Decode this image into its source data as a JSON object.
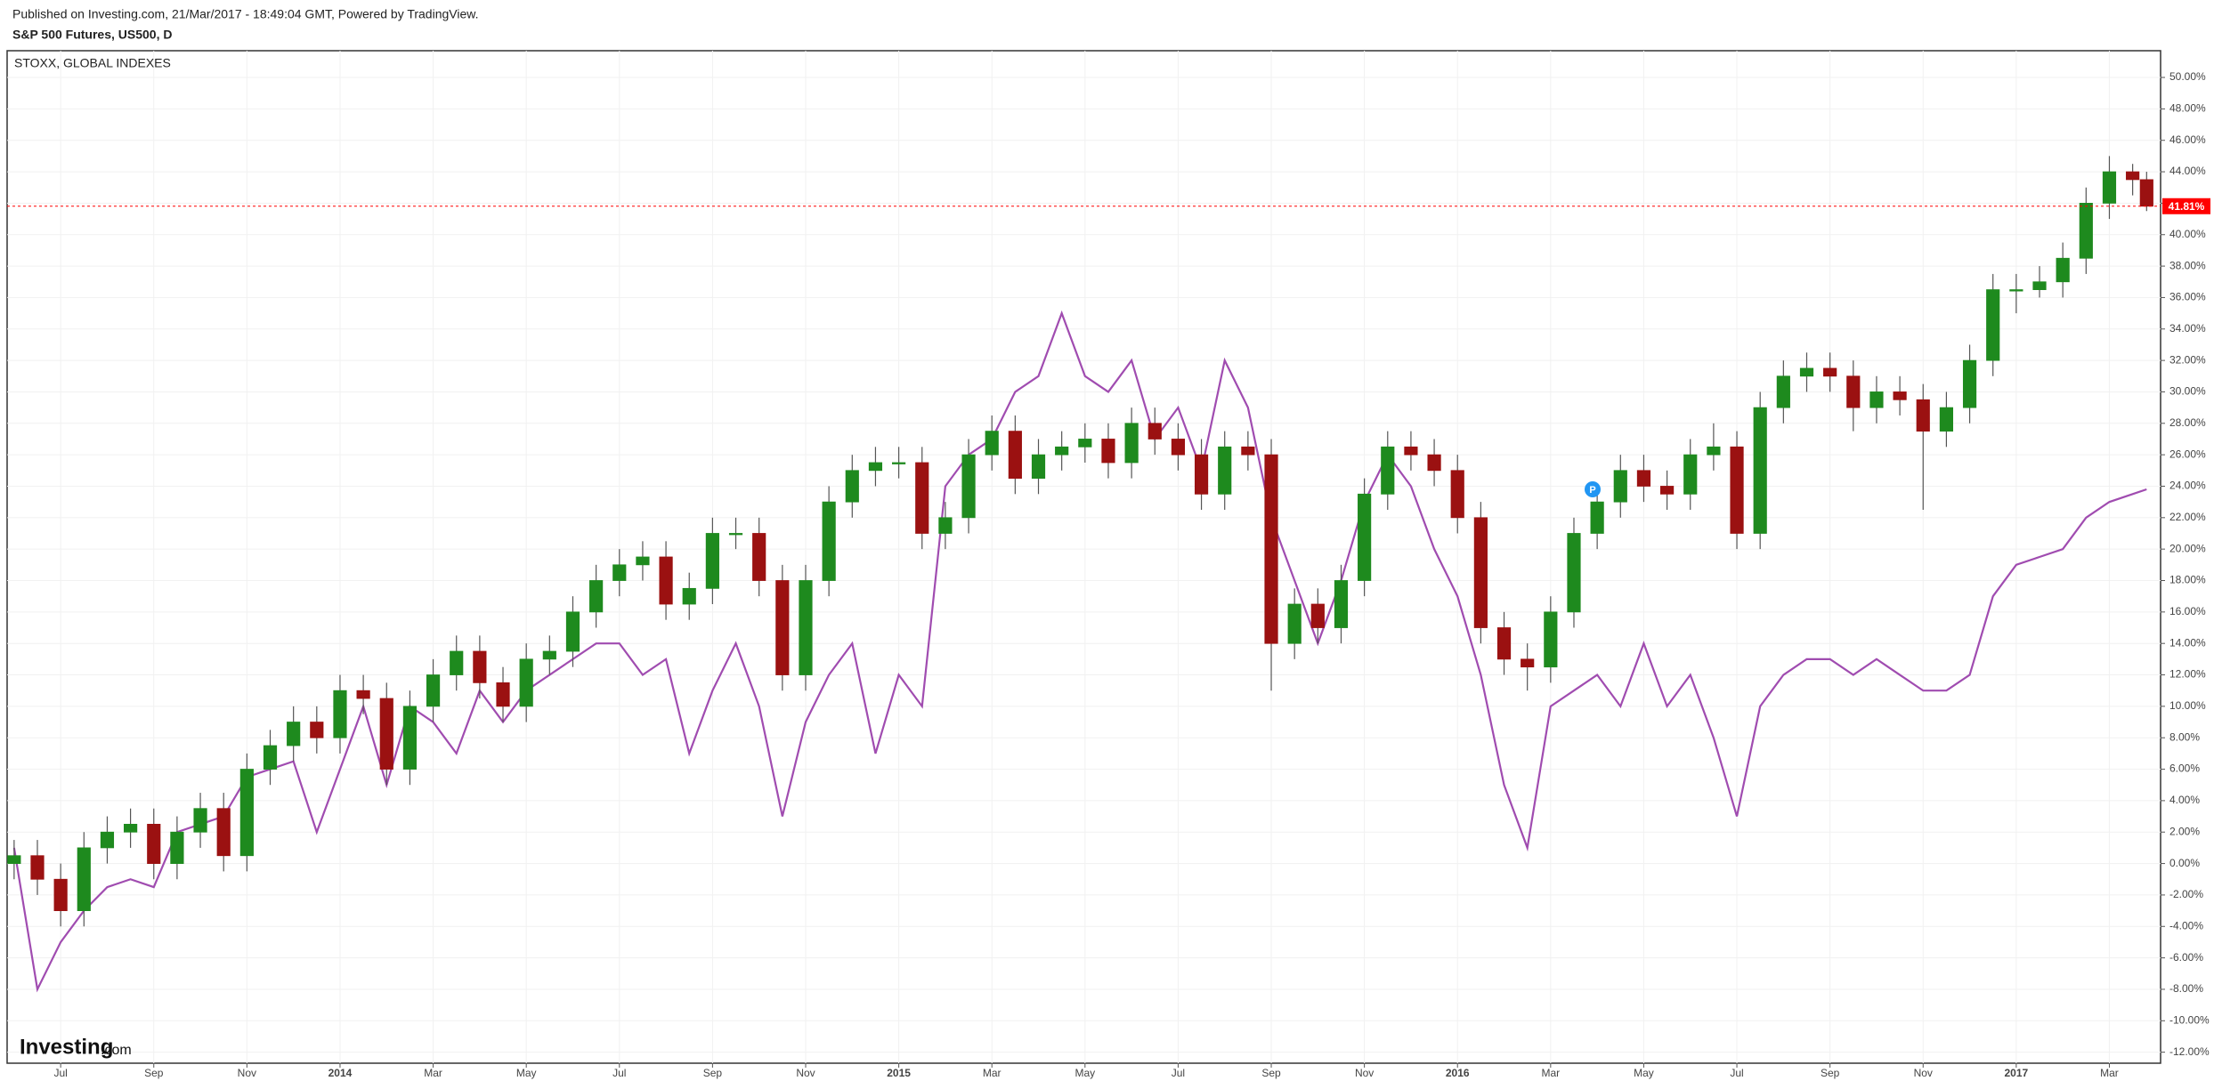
{
  "header": {
    "published": "Published on Investing.com, 21/Mar/2017 - 18:49:04 GMT, Powered by TradingView."
  },
  "watermark": {
    "brand": "Investing",
    "suffix": ".com"
  },
  "marker_label": "P",
  "chart_data": {
    "type": "candlestick",
    "x": [
      0,
      0.5,
      1,
      1.5,
      2,
      2.5,
      3,
      3.5,
      4,
      4.5,
      5,
      5.5,
      6,
      6.5,
      7,
      7.5,
      8,
      8.5,
      9,
      9.5,
      10,
      10.5,
      11,
      11.5,
      12,
      12.5,
      13,
      13.5,
      14,
      14.5,
      15,
      15.5,
      16,
      16.5,
      17,
      17.5,
      18,
      18.5,
      19,
      19.5,
      20,
      20.5,
      21,
      21.5,
      22,
      22.5,
      23,
      23.5,
      24,
      24.5,
      25,
      25.5,
      26,
      26.5,
      27,
      27.5,
      28,
      28.5,
      29,
      29.5,
      30,
      30.5,
      31,
      31.5,
      32,
      32.5,
      33,
      33.5,
      34,
      34.5,
      35,
      35.5,
      36,
      36.5,
      37,
      37.5,
      38,
      38.5,
      39,
      39.5,
      40,
      40.5,
      41,
      41.5,
      42,
      42.5,
      43,
      43.5,
      44,
      44.5,
      45,
      45.5,
      45.8
    ],
    "xlim": [
      -0.15,
      46.1
    ],
    "xticks": [
      {
        "value": 1,
        "label": "Jul"
      },
      {
        "value": 3,
        "label": "Sep"
      },
      {
        "value": 5,
        "label": "Nov"
      },
      {
        "value": 7,
        "label": "2014"
      },
      {
        "value": 9,
        "label": "Mar"
      },
      {
        "value": 11,
        "label": "May"
      },
      {
        "value": 13,
        "label": "Jul"
      },
      {
        "value": 15,
        "label": "Sep"
      },
      {
        "value": 17,
        "label": "Nov"
      },
      {
        "value": 19,
        "label": "2015"
      },
      {
        "value": 21,
        "label": "Mar"
      },
      {
        "value": 23,
        "label": "May"
      },
      {
        "value": 25,
        "label": "Jul"
      },
      {
        "value": 27,
        "label": "Sep"
      },
      {
        "value": 29,
        "label": "Nov"
      },
      {
        "value": 31,
        "label": "2016"
      },
      {
        "value": 33,
        "label": "Mar"
      },
      {
        "value": 35,
        "label": "May"
      },
      {
        "value": 37,
        "label": "Jul"
      },
      {
        "value": 39,
        "label": "Sep"
      },
      {
        "value": 41,
        "label": "Nov"
      },
      {
        "value": 43,
        "label": "2017"
      },
      {
        "value": 45,
        "label": "Mar"
      }
    ],
    "ylim": [
      -12.7,
      51.7
    ],
    "yticks": [
      {
        "value": 50,
        "label": "50.00%"
      },
      {
        "value": 48,
        "label": "48.00%"
      },
      {
        "value": 46,
        "label": "46.00%"
      },
      {
        "value": 44,
        "label": "44.00%"
      },
      {
        "value": 42,
        "label": "42.00%"
      },
      {
        "value": 40,
        "label": "40.00%"
      },
      {
        "value": 38,
        "label": "38.00%"
      },
      {
        "value": 36,
        "label": "36.00%"
      },
      {
        "value": 34,
        "label": "34.00%"
      },
      {
        "value": 32,
        "label": "32.00%"
      },
      {
        "value": 30,
        "label": "30.00%"
      },
      {
        "value": 28,
        "label": "28.00%"
      },
      {
        "value": 26,
        "label": "26.00%"
      },
      {
        "value": 24,
        "label": "24.00%"
      },
      {
        "value": 22,
        "label": "22.00%"
      },
      {
        "value": 20,
        "label": "20.00%"
      },
      {
        "value": 18,
        "label": "18.00%"
      },
      {
        "value": 16,
        "label": "16.00%"
      },
      {
        "value": 14,
        "label": "14.00%"
      },
      {
        "value": 12,
        "label": "12.00%"
      },
      {
        "value": 10,
        "label": "10.00%"
      },
      {
        "value": 8,
        "label": "8.00%"
      },
      {
        "value": 6,
        "label": "6.00%"
      },
      {
        "value": 4,
        "label": "4.00%"
      },
      {
        "value": 2,
        "label": "2.00%"
      },
      {
        "value": 0,
        "label": "0.00%"
      },
      {
        "value": -2,
        "label": "-2.00%"
      },
      {
        "value": -4,
        "label": "-4.00%"
      },
      {
        "value": -6,
        "label": "-6.00%"
      },
      {
        "value": -8,
        "label": "-8.00%"
      },
      {
        "value": -10,
        "label": "-10.00%"
      },
      {
        "value": -12,
        "label": "-12.00%"
      }
    ],
    "grid": true,
    "last_value": {
      "value": 41.81,
      "label": "41.81%",
      "color": "#ff0000"
    },
    "series": [
      {
        "name": "S&P 500 Futures, US500, D",
        "type": "candlestick",
        "up_color": "#1e8a1e",
        "down_color": "#9b1111",
        "open": [
          0,
          0.5,
          -1,
          -3,
          1,
          2,
          2.5,
          0,
          2,
          3.5,
          0.5,
          6,
          7.5,
          9,
          8,
          11,
          10.5,
          6,
          10,
          12,
          13.5,
          11.5,
          10,
          13,
          13.5,
          16,
          18,
          19,
          19.5,
          16.5,
          17.5,
          21,
          21,
          18,
          12,
          18,
          23,
          25,
          25.5,
          25.5,
          21,
          22,
          26,
          27.5,
          24.5,
          26,
          26.5,
          27,
          25.5,
          28,
          27,
          26,
          23.5,
          26.5,
          26,
          14,
          16.5,
          15,
          18,
          23.5,
          26.5,
          26,
          25,
          22,
          15,
          13,
          12.5,
          16,
          21,
          23,
          25,
          24,
          23.5,
          26,
          26.5,
          21,
          29,
          31,
          31.5,
          31,
          29,
          30,
          29.5,
          27.5,
          29,
          32,
          36.5,
          36.5,
          37,
          38.5,
          42,
          44,
          43.5
        ],
        "high": [
          1.5,
          1.5,
          0,
          2,
          3,
          3.5,
          3.5,
          3,
          4.5,
          4.5,
          7,
          8.5,
          10,
          10,
          12,
          12,
          11.5,
          11,
          13,
          14.5,
          14.5,
          12.5,
          14,
          14.5,
          17,
          19,
          20,
          20.5,
          20.5,
          18.5,
          22,
          22,
          22,
          19,
          19,
          24,
          26,
          26.5,
          26.5,
          26.5,
          23,
          27,
          28.5,
          28.5,
          27,
          27.5,
          28,
          28,
          29,
          29,
          28,
          27,
          27.5,
          27.5,
          27,
          17.5,
          17.5,
          19,
          24.5,
          27.5,
          27.5,
          27,
          26,
          23,
          16,
          14,
          17,
          22,
          24,
          26,
          26,
          25,
          27,
          28,
          27.5,
          30,
          32,
          32.5,
          32.5,
          32,
          31,
          31,
          30.5,
          30,
          33,
          37.5,
          37.5,
          38,
          39.5,
          43,
          45,
          44.5,
          44
        ],
        "low": [
          -1,
          -2,
          -4,
          -4,
          0,
          1,
          -1,
          -1,
          1,
          -0.5,
          -0.5,
          5,
          6.5,
          7,
          7,
          9.5,
          5,
          5,
          9,
          11,
          10.5,
          9,
          9,
          12,
          12.5,
          15,
          17,
          18,
          15.5,
          15.5,
          16.5,
          20,
          17,
          11,
          11,
          17,
          22,
          24,
          24.5,
          20,
          20,
          21,
          25,
          23.5,
          23.5,
          25,
          25.5,
          24.5,
          24.5,
          26,
          25,
          22.5,
          22.5,
          25,
          11,
          13,
          14,
          14,
          17,
          22.5,
          25,
          24,
          21,
          14,
          12,
          11,
          11.5,
          15,
          20,
          22,
          23,
          22.5,
          22.5,
          25,
          20,
          20,
          28,
          30,
          30,
          27.5,
          28,
          28.5,
          22.5,
          26.5,
          28,
          31,
          35,
          36,
          36,
          37.5,
          41,
          42.5,
          41.5
        ],
        "close": [
          0.5,
          -1,
          -3,
          1,
          2,
          2.5,
          0,
          2,
          3.5,
          0.5,
          6,
          7.5,
          9,
          8,
          11,
          10.5,
          6,
          10,
          12,
          13.5,
          11.5,
          10,
          13,
          13.5,
          16,
          18,
          19,
          19.5,
          16.5,
          17.5,
          21,
          21,
          18,
          12,
          18,
          23,
          25,
          25.5,
          25.5,
          21,
          22,
          26,
          27.5,
          24.5,
          26,
          26.5,
          27,
          25.5,
          28,
          27,
          26,
          23.5,
          26.5,
          26,
          14,
          16.5,
          15,
          18,
          23.5,
          26.5,
          26,
          25,
          22,
          15,
          13,
          12.5,
          16,
          21,
          23,
          25,
          24,
          23.5,
          26,
          26.5,
          21,
          29,
          31,
          31.5,
          31,
          29,
          30,
          29.5,
          27.5,
          29,
          32,
          36.5,
          36.5,
          37,
          38.5,
          42,
          44,
          43.5,
          41.81
        ]
      },
      {
        "name": "STOXX, GLOBAL INDEXES",
        "type": "line",
        "color": "#a04cb0",
        "values": [
          1,
          -8,
          -5,
          -3,
          -1.5,
          -1,
          -1.5,
          2,
          2.5,
          3,
          5.5,
          6,
          6.5,
          2,
          6,
          10,
          5,
          10,
          9,
          7,
          11,
          9,
          11,
          12,
          13,
          14,
          14,
          12,
          13,
          7,
          11,
          14,
          10,
          3,
          9,
          12,
          14,
          7,
          12,
          10,
          24,
          26,
          27,
          30,
          31,
          35,
          31,
          30,
          32,
          27,
          29,
          25,
          32,
          29,
          22,
          18,
          14,
          18,
          23,
          26,
          24,
          20,
          17,
          12,
          5,
          1,
          10,
          11,
          12,
          10,
          14,
          10,
          12,
          8,
          3,
          10,
          12,
          13,
          13,
          12,
          13,
          12,
          11,
          11,
          12,
          17,
          19,
          19.5,
          20,
          22,
          23,
          23.5,
          23.8
        ]
      }
    ]
  }
}
